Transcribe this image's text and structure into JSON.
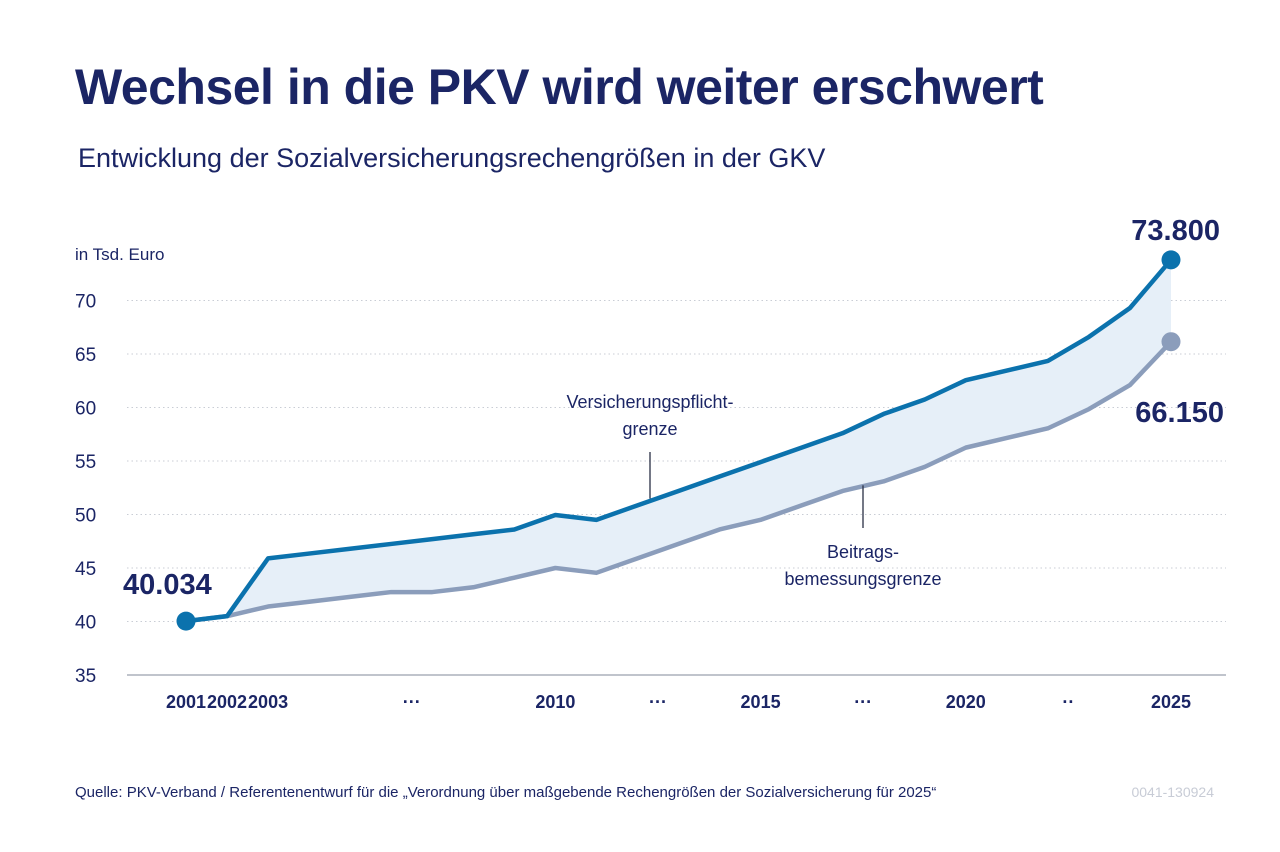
{
  "title": "Wechsel in die PKV wird weiter erschwert",
  "subtitle": "Entwicklung der Sozialversicherungsrechengrößen in der GKV",
  "source": "Quelle: PKV-Verband / Referentenentwurf für die „Verordnung über maßgebende Rechengrößen der Sozialversicherung für 2025“",
  "code": "0041-130924",
  "colors": {
    "title": "#1b2565",
    "series_a": "#0b72ad",
    "series_b": "#8b9dbb",
    "area": "#e6eff8",
    "grid": "#c9cdd5"
  },
  "chart_data": {
    "type": "line",
    "ylabel": "in Tsd. Euro",
    "ylim": [
      35,
      73.8
    ],
    "yticks": [
      35,
      40,
      45,
      50,
      55,
      60,
      65,
      70
    ],
    "grid": "dotted horizontal",
    "x_labels": [
      {
        "year": 2001,
        "label": "2001"
      },
      {
        "year": 2002,
        "label": "2002"
      },
      {
        "year": 2003,
        "label": "2003"
      },
      {
        "year": 2006.5,
        "label": "···"
      },
      {
        "year": 2010,
        "label": "2010"
      },
      {
        "year": 2012.5,
        "label": "···"
      },
      {
        "year": 2015,
        "label": "2015"
      },
      {
        "year": 2017.5,
        "label": "···"
      },
      {
        "year": 2020,
        "label": "2020"
      },
      {
        "year": 2022.5,
        "label": "··"
      },
      {
        "year": 2025,
        "label": "2025"
      }
    ],
    "series": [
      {
        "name": "Versicherungspflichtgrenze",
        "label_lines": [
          "Versicherungspflicht-",
          "grenze"
        ],
        "x": [
          2001,
          2002,
          2003,
          2004,
          2005,
          2006,
          2007,
          2008,
          2009,
          2010,
          2011,
          2012,
          2013,
          2014,
          2015,
          2016,
          2017,
          2018,
          2019,
          2020,
          2021,
          2022,
          2023,
          2024,
          2025
        ],
        "y": [
          40.034,
          40.5,
          45.9,
          46.35,
          46.8,
          47.25,
          47.7,
          48.15,
          48.6,
          49.95,
          49.5,
          50.85,
          52.2,
          53.55,
          54.9,
          56.25,
          57.6,
          59.4,
          60.75,
          62.55,
          63.45,
          64.35,
          66.6,
          69.3,
          73.8
        ],
        "end_label": "73.800"
      },
      {
        "name": "Beitragsbemessungsgrenze",
        "label_lines": [
          "Beitrags-",
          "bemessungsgrenze"
        ],
        "x": [
          2001,
          2002,
          2003,
          2004,
          2005,
          2006,
          2007,
          2008,
          2009,
          2010,
          2011,
          2012,
          2013,
          2014,
          2015,
          2016,
          2017,
          2018,
          2019,
          2020,
          2021,
          2022,
          2023,
          2024,
          2025
        ],
        "y": [
          40.034,
          40.5,
          41.4,
          41.85,
          42.3,
          42.75,
          42.75,
          43.2,
          44.1,
          45.0,
          44.55,
          45.9,
          47.25,
          48.6,
          49.5,
          50.85,
          52.2,
          53.1,
          54.45,
          56.25,
          57.15,
          58.05,
          59.85,
          62.1,
          66.15
        ],
        "end_label": "66.150"
      }
    ],
    "start_label": "40.034"
  }
}
